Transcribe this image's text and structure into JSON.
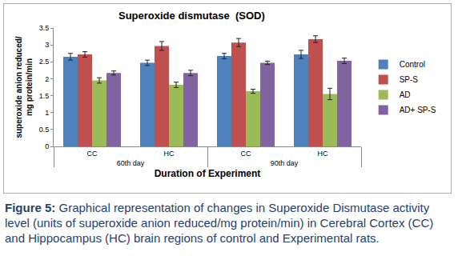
{
  "chart_data": {
    "type": "bar",
    "title": "Superoxide dismutase  (SOD)",
    "x_label": "Duration of Experiment",
    "y_label": "superoxide anion reduced/ mg protein/min",
    "categories": [
      [
        "60th day",
        "CC"
      ],
      [
        "60th day",
        "HC"
      ],
      [
        "90th day",
        "CC"
      ],
      [
        "90th day",
        "HC"
      ]
    ],
    "series": [
      {
        "name": "Control",
        "color": "#4f81bd",
        "values": [
          2.65,
          2.47,
          2.67,
          2.72
        ],
        "errors": [
          0.1,
          0.08,
          0.08,
          0.12
        ]
      },
      {
        "name": "SP-S",
        "color": "#c0504d",
        "values": [
          2.72,
          2.97,
          3.07,
          3.17
        ],
        "errors": [
          0.08,
          0.13,
          0.12,
          0.1
        ]
      },
      {
        "name": "AD",
        "color": "#9bbb59",
        "values": [
          1.95,
          1.82,
          1.63,
          1.55
        ],
        "errors": [
          0.08,
          0.08,
          0.06,
          0.17
        ]
      },
      {
        "name": "AD+ SP-S",
        "color": "#8064a2",
        "values": [
          2.17,
          2.17,
          2.47,
          2.53
        ],
        "errors": [
          0.06,
          0.08,
          0.05,
          0.08
        ]
      }
    ],
    "ylim": [
      0,
      3.5
    ],
    "yticks": [
      0,
      0.5,
      1,
      1.5,
      2,
      2.5,
      3,
      3.5
    ],
    "grid": false,
    "legend": "right"
  },
  "caption": {
    "label": "Figure 5:",
    "text": "Graphical representation of changes in Superoxide Dismutase activity level (units of superoxide anion reduced/mg protein/min) in Cerebral Cortex (CC) and Hippocampus (HC) brain regions of control and Experimental rats."
  }
}
